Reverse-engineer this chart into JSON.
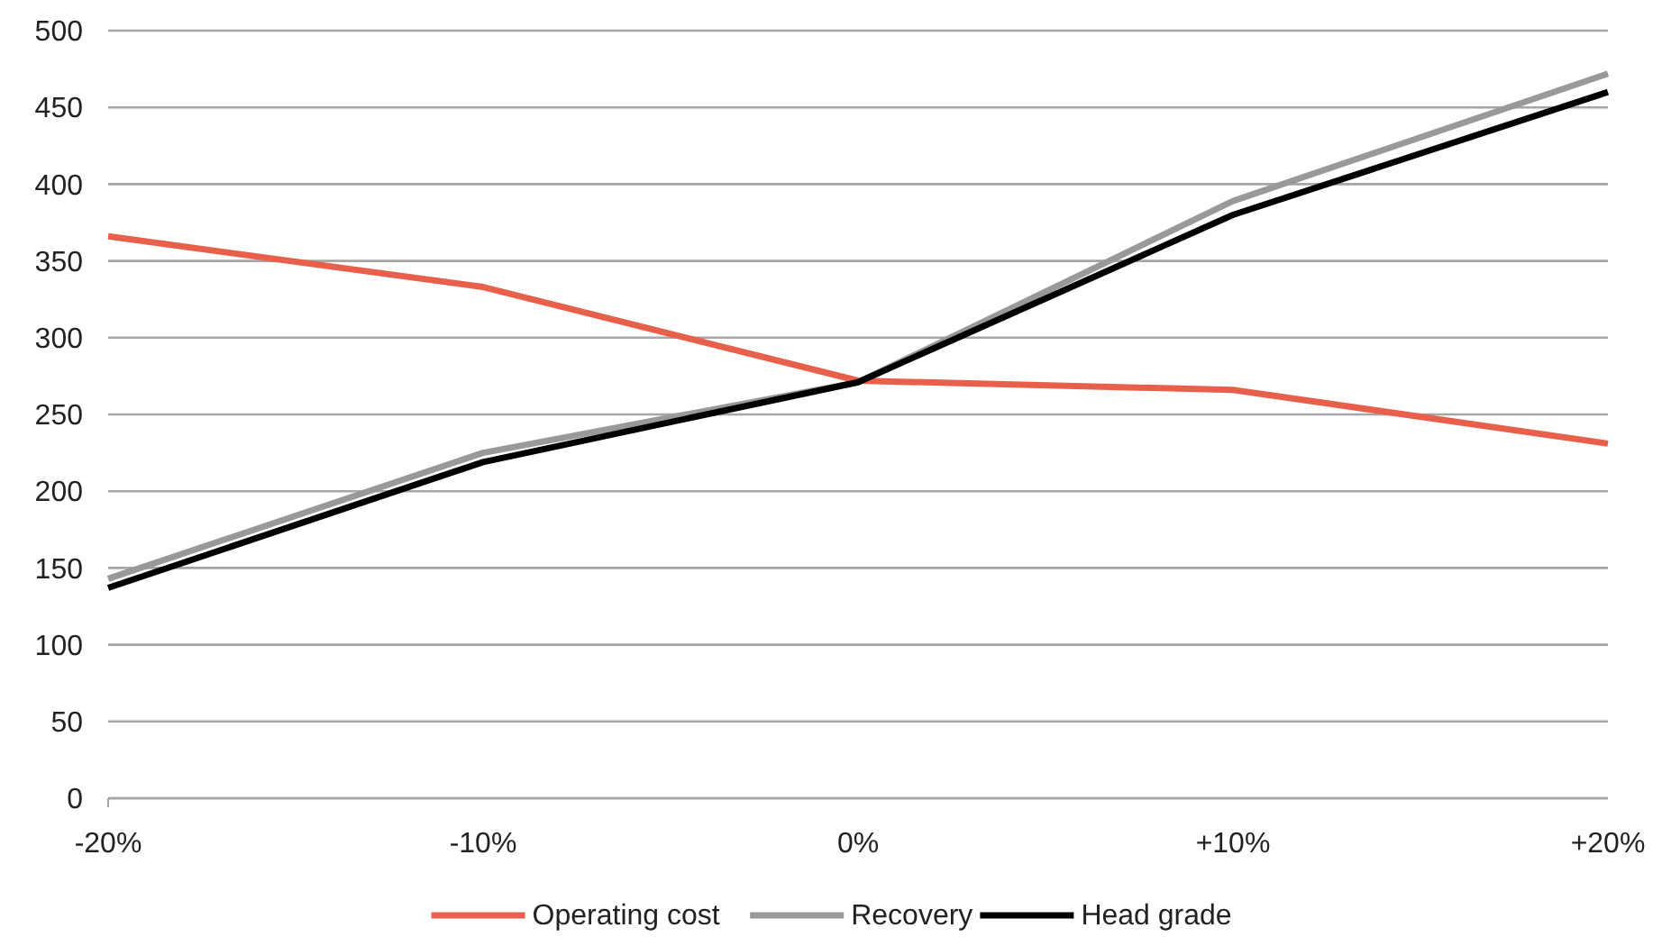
{
  "chart_data": {
    "type": "line",
    "categories": [
      "-20%",
      "-10%",
      "0%",
      "+10%",
      "+20%"
    ],
    "series": [
      {
        "name": "Operating cost",
        "color": "#e8604c",
        "values": [
          366,
          333,
          272,
          266,
          231
        ]
      },
      {
        "name": "Recovery",
        "color": "#999999",
        "values": [
          143,
          225,
          271,
          389,
          472
        ]
      },
      {
        "name": "Head grade",
        "color": "#000000",
        "values": [
          137,
          219,
          271,
          380,
          460
        ]
      }
    ],
    "ylim": [
      0,
      500
    ],
    "yticks": [
      0,
      50,
      100,
      150,
      200,
      250,
      300,
      350,
      400,
      450,
      500
    ],
    "grid": "y",
    "legend": "bottom",
    "marker": "none",
    "line_style": "solid"
  }
}
